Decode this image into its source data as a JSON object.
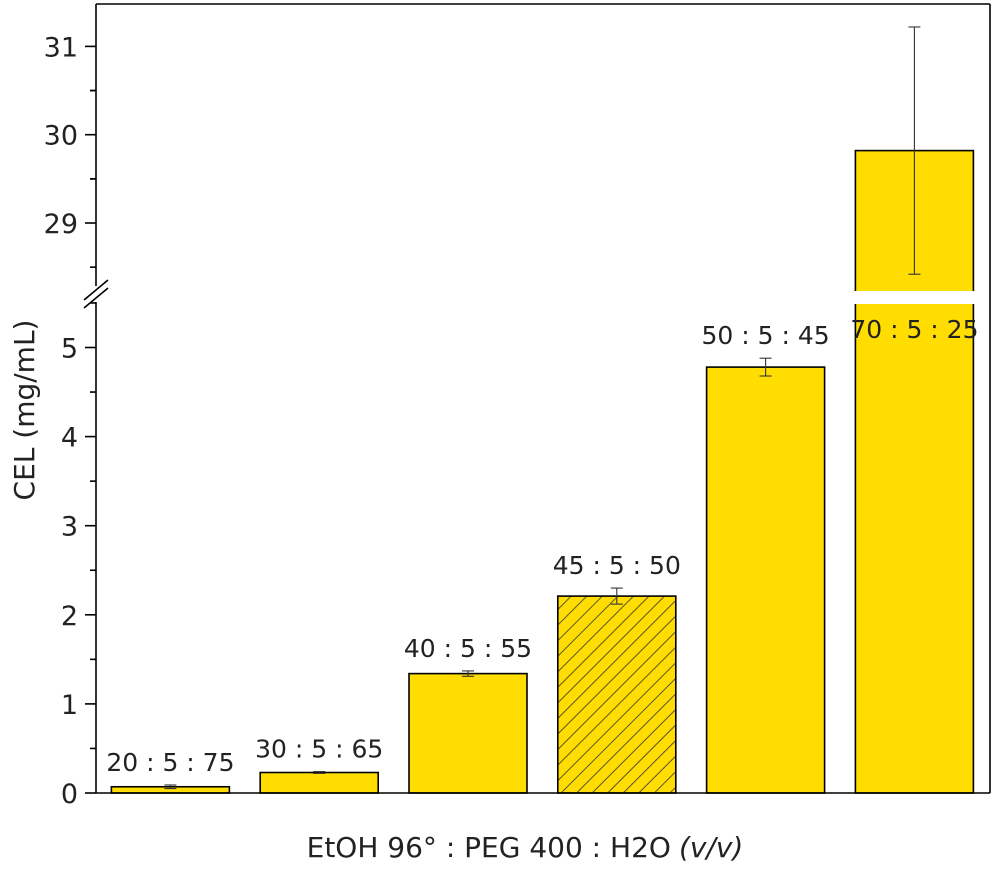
{
  "chart_data": {
    "type": "bar",
    "title": "",
    "xlabel": "EtOH 96° : PEG 400 : H2O",
    "xlabel_unit": "(v/v)",
    "ylabel": "CEL (mg/mL)",
    "broken_y_axis": true,
    "ylim_lower": [
      0,
      5.5
    ],
    "ylim_upper": [
      28.2,
      31.5
    ],
    "yticks_lower": [
      "0",
      "1",
      "2",
      "3",
      "4",
      "5"
    ],
    "yticks_upper": [
      "29",
      "30",
      "31"
    ],
    "categories": [
      "20 : 5 : 75",
      "30 : 5 : 65",
      "40 : 5 : 55",
      "45 : 5 : 50",
      "50 : 5 : 45",
      "70 : 5 : 25"
    ],
    "values": [
      0.07,
      0.23,
      1.34,
      2.21,
      4.78,
      29.82
    ],
    "errors": [
      0.02,
      0.01,
      0.03,
      0.09,
      0.1,
      1.4
    ],
    "hatched_index": 3,
    "bar_color": "#FFDD00",
    "edge_color": "#000000",
    "grid": false,
    "legend": false
  }
}
